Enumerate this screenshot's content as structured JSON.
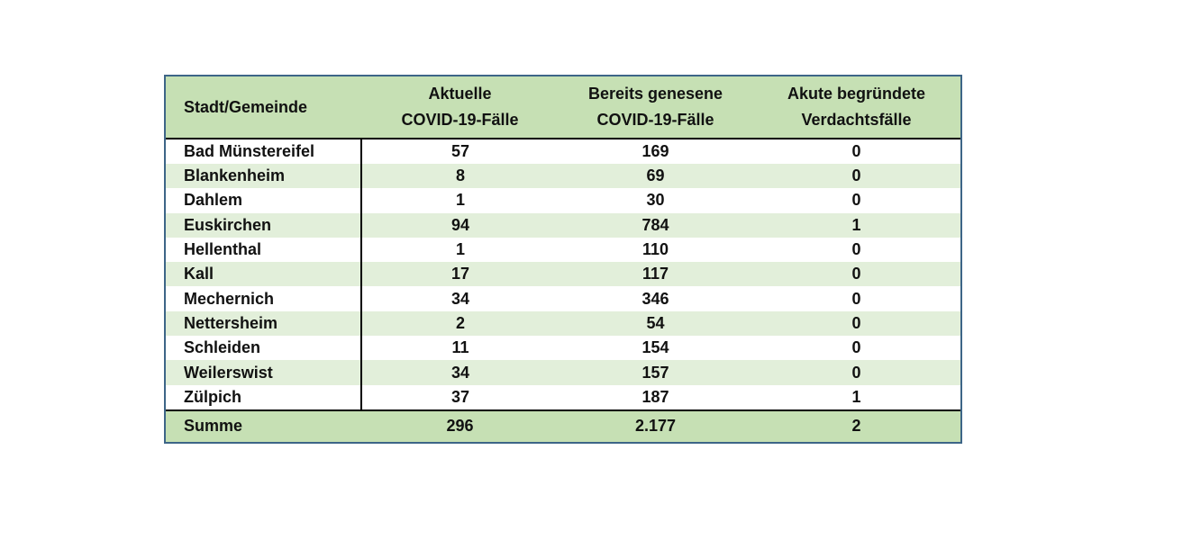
{
  "table": {
    "headers": [
      [
        "Stadt/Gemeinde"
      ],
      [
        "Aktuelle",
        "COVID-19-Fälle"
      ],
      [
        "Bereits genesene",
        "COVID-19-Fälle"
      ],
      [
        "Akute begründete",
        "Verdachtsfälle"
      ]
    ],
    "rows": [
      [
        "Bad Münstereifel",
        "57",
        "169",
        "0"
      ],
      [
        "Blankenheim",
        "8",
        "69",
        "0"
      ],
      [
        "Dahlem",
        "1",
        "30",
        "0"
      ],
      [
        "Euskirchen",
        "94",
        "784",
        "1"
      ],
      [
        "Hellenthal",
        "1",
        "110",
        "0"
      ],
      [
        "Kall",
        "17",
        "117",
        "0"
      ],
      [
        "Mechernich",
        "34",
        "346",
        "0"
      ],
      [
        "Nettersheim",
        "2",
        "54",
        "0"
      ],
      [
        "Schleiden",
        "11",
        "154",
        "0"
      ],
      [
        "Weilerswist",
        "34",
        "157",
        "0"
      ],
      [
        "Zülpich",
        "37",
        "187",
        "1"
      ]
    ],
    "footer": [
      "Summe",
      "296",
      "2.177",
      "2"
    ]
  },
  "colors": {
    "header_bg": "#c6e0b4",
    "stripe_bg": "#e2efda",
    "frame_border": "#3d6587"
  }
}
